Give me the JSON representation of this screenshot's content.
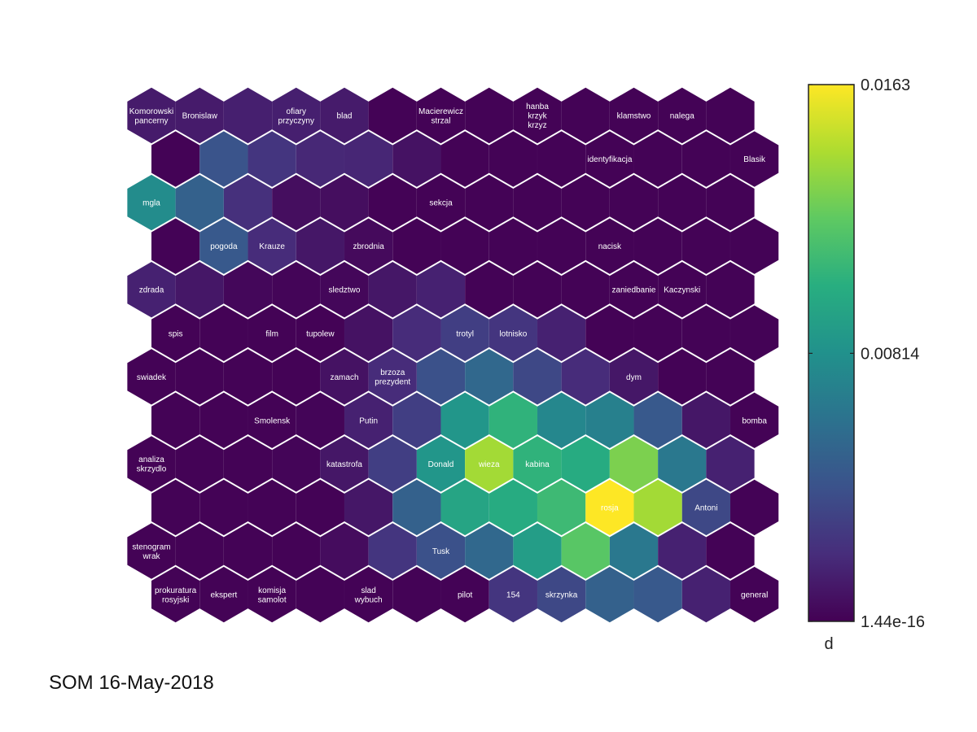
{
  "chart_data": {
    "type": "heatmap",
    "title": "",
    "colorbar": {
      "label": "d",
      "ticks": [
        {
          "value": 0.0163,
          "label": "0.0163"
        },
        {
          "value": 0.00814,
          "label": "0.00814"
        },
        {
          "value": 1.44e-16,
          "label": "1.44e-16"
        }
      ],
      "min": 1.44e-16,
      "max": 0.0163,
      "colormap": "viridis"
    },
    "grid": {
      "rows": 12,
      "cols": 13
    },
    "cells": [
      [
        0.0012,
        0.0012,
        0.0014,
        0.0014,
        0.0012,
        0.0001,
        0.0001,
        0.0001,
        0.0001,
        0.0001,
        0.0001,
        0.0001,
        0.0001
      ],
      [
        0.0001,
        0.0042,
        0.0025,
        0.0018,
        0.0017,
        0.0008,
        0.0001,
        0.0001,
        0.0001,
        0.0001,
        0.0001,
        0.0001,
        0.0001
      ],
      [
        0.0078,
        0.005,
        0.0022,
        0.0006,
        0.0006,
        0.0001,
        0.0001,
        0.0001,
        0.0001,
        0.0001,
        0.0001,
        0.0001,
        0.0001
      ],
      [
        0.0001,
        0.0045,
        0.002,
        0.001,
        0.0004,
        0.0001,
        0.0001,
        0.0001,
        0.0001,
        0.0001,
        0.0001,
        0.0001,
        0.0001
      ],
      [
        0.0015,
        0.001,
        0.0003,
        0.0002,
        0.0003,
        0.001,
        0.0015,
        0.0001,
        0.0001,
        0.0001,
        0.0001,
        0.0001,
        0.0001
      ],
      [
        0.0001,
        0.0001,
        0.0001,
        0.0001,
        0.0008,
        0.002,
        0.003,
        0.0025,
        0.0015,
        0.0001,
        0.0001,
        0.0001,
        0.0001
      ],
      [
        0.0001,
        0.0001,
        0.0001,
        0.0001,
        0.0008,
        0.002,
        0.004,
        0.0055,
        0.0035,
        0.002,
        0.001,
        0.0001,
        0.0001
      ],
      [
        0.0001,
        0.0001,
        0.0001,
        0.0002,
        0.0015,
        0.003,
        0.0085,
        0.0105,
        0.0075,
        0.007,
        0.0045,
        0.001,
        0.0001
      ],
      [
        0.0001,
        0.0001,
        0.0001,
        0.0002,
        0.001,
        0.003,
        0.0085,
        0.014,
        0.0105,
        0.01,
        0.013,
        0.0065,
        0.0015
      ],
      [
        0.0001,
        0.0001,
        0.0001,
        0.0001,
        0.001,
        0.005,
        0.0095,
        0.01,
        0.011,
        0.0163,
        0.014,
        0.0035,
        0.0001
      ],
      [
        0.0001,
        0.0001,
        0.0001,
        0.0001,
        0.0005,
        0.0025,
        0.004,
        0.0055,
        0.009,
        0.012,
        0.0065,
        0.0015,
        0.0001
      ],
      [
        0.0001,
        0.0001,
        0.0001,
        0.0001,
        0.0001,
        0.0001,
        0.0001,
        0.0025,
        0.0035,
        0.005,
        0.0045,
        0.0015,
        0.0001
      ]
    ],
    "labels": [
      {
        "row": 0,
        "col": 0,
        "text": [
          "Komorowski",
          "pancerny"
        ]
      },
      {
        "row": 0,
        "col": 1,
        "text": [
          "Bronislaw"
        ]
      },
      {
        "row": 0,
        "col": 3,
        "text": [
          "ofiary",
          "przyczyny"
        ]
      },
      {
        "row": 0,
        "col": 4,
        "text": [
          "blad"
        ]
      },
      {
        "row": 0,
        "col": 6,
        "text": [
          "Macierewicz",
          "strzal"
        ]
      },
      {
        "row": 0,
        "col": 8,
        "text": [
          "hanba",
          "krzyk",
          "krzyz"
        ]
      },
      {
        "row": 0,
        "col": 10,
        "text": [
          "klamstwo"
        ]
      },
      {
        "row": 0,
        "col": 11,
        "text": [
          "nalega"
        ]
      },
      {
        "row": 1,
        "col": 9,
        "text": [
          "identyfikacja"
        ]
      },
      {
        "row": 1,
        "col": 12,
        "text": [
          "Blasik"
        ]
      },
      {
        "row": 2,
        "col": 0,
        "text": [
          "mgla"
        ]
      },
      {
        "row": 2,
        "col": 6,
        "text": [
          "sekcja"
        ]
      },
      {
        "row": 3,
        "col": 1,
        "text": [
          "pogoda"
        ]
      },
      {
        "row": 3,
        "col": 2,
        "text": [
          "Krauze"
        ]
      },
      {
        "row": 3,
        "col": 4,
        "text": [
          "zbrodnia"
        ]
      },
      {
        "row": 3,
        "col": 9,
        "text": [
          "nacisk"
        ]
      },
      {
        "row": 4,
        "col": 0,
        "text": [
          "zdrada"
        ]
      },
      {
        "row": 4,
        "col": 4,
        "text": [
          "sledztwo"
        ]
      },
      {
        "row": 4,
        "col": 10,
        "text": [
          "zaniedbanie"
        ]
      },
      {
        "row": 4,
        "col": 11,
        "text": [
          "Kaczynski"
        ]
      },
      {
        "row": 5,
        "col": 0,
        "text": [
          "spis"
        ]
      },
      {
        "row": 5,
        "col": 2,
        "text": [
          "film"
        ]
      },
      {
        "row": 5,
        "col": 3,
        "text": [
          "tupolew"
        ]
      },
      {
        "row": 5,
        "col": 6,
        "text": [
          "trotyl"
        ]
      },
      {
        "row": 5,
        "col": 7,
        "text": [
          "lotnisko"
        ]
      },
      {
        "row": 6,
        "col": 0,
        "text": [
          "swiadek"
        ]
      },
      {
        "row": 6,
        "col": 4,
        "text": [
          "zamach"
        ]
      },
      {
        "row": 6,
        "col": 5,
        "text": [
          "brzoza",
          "prezydent"
        ]
      },
      {
        "row": 6,
        "col": 10,
        "text": [
          "dym"
        ]
      },
      {
        "row": 7,
        "col": 2,
        "text": [
          "Smolensk"
        ]
      },
      {
        "row": 7,
        "col": 4,
        "text": [
          "Putin"
        ]
      },
      {
        "row": 7,
        "col": 12,
        "text": [
          "bomba"
        ]
      },
      {
        "row": 8,
        "col": 0,
        "text": [
          "analiza",
          "skrzydlo"
        ]
      },
      {
        "row": 8,
        "col": 4,
        "text": [
          "katastrofa"
        ]
      },
      {
        "row": 8,
        "col": 6,
        "text": [
          "Donald"
        ]
      },
      {
        "row": 8,
        "col": 7,
        "text": [
          "wieza"
        ]
      },
      {
        "row": 8,
        "col": 8,
        "text": [
          "kabina"
        ]
      },
      {
        "row": 9,
        "col": 9,
        "text": [
          "rosja"
        ]
      },
      {
        "row": 9,
        "col": 11,
        "text": [
          "Antoni"
        ]
      },
      {
        "row": 10,
        "col": 0,
        "text": [
          "stenogram",
          "wrak"
        ]
      },
      {
        "row": 10,
        "col": 6,
        "text": [
          "Tusk"
        ]
      },
      {
        "row": 11,
        "col": 0,
        "text": [
          "prokuratura",
          "rosyjski"
        ]
      },
      {
        "row": 11,
        "col": 1,
        "text": [
          "ekspert"
        ]
      },
      {
        "row": 11,
        "col": 2,
        "text": [
          "komisja",
          "samolot"
        ]
      },
      {
        "row": 11,
        "col": 4,
        "text": [
          "slad",
          "wybuch"
        ]
      },
      {
        "row": 11,
        "col": 6,
        "text": [
          "pilot"
        ]
      },
      {
        "row": 11,
        "col": 7,
        "text": [
          "154"
        ]
      },
      {
        "row": 11,
        "col": 8,
        "text": [
          "skrzynka"
        ]
      },
      {
        "row": 11,
        "col": 12,
        "text": [
          "general"
        ]
      }
    ]
  },
  "footer": {
    "text": "SOM 16-May-2018"
  }
}
